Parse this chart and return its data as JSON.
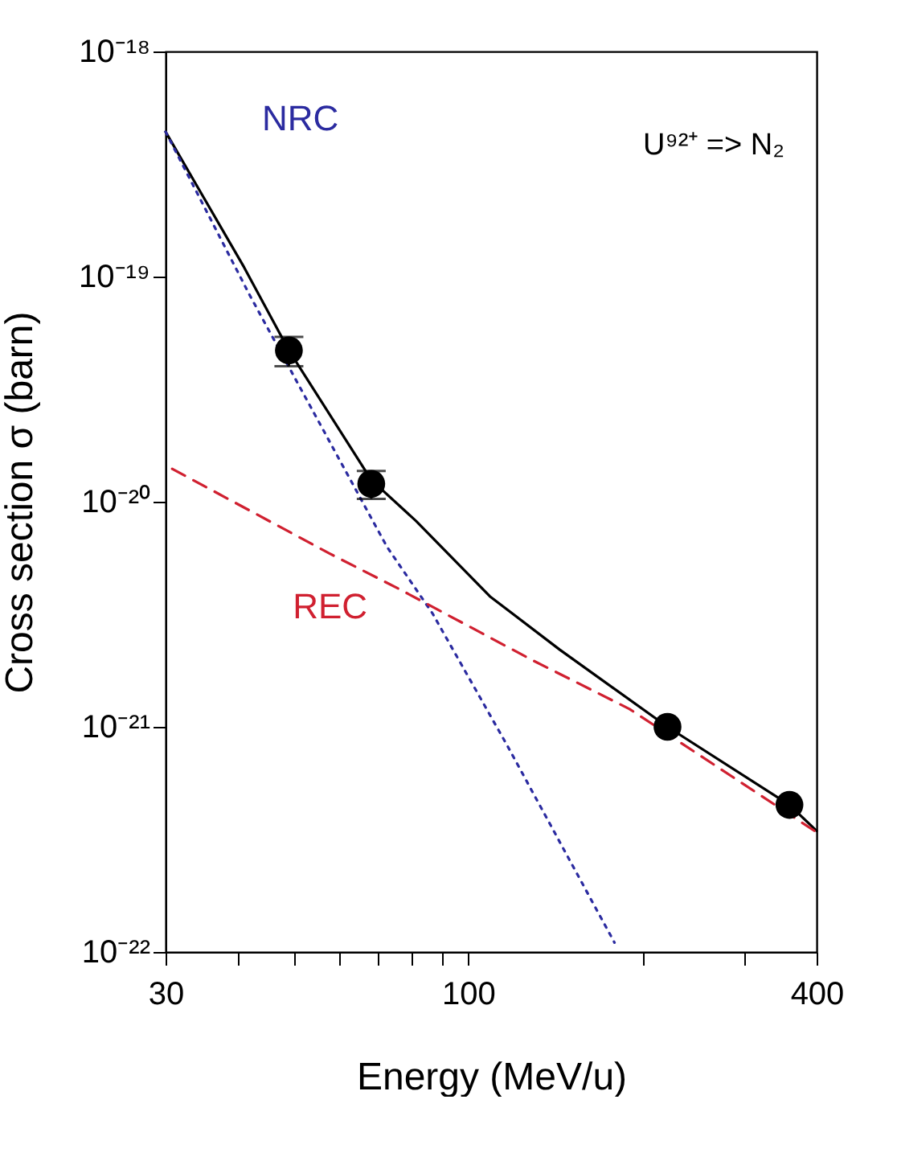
{
  "chart_data": {
    "type": "line",
    "xlabel": "Energy (MeV/u)",
    "ylabel": "Cross section σ (barn)",
    "annotations": [
      "U⁹²⁺ => N₂"
    ],
    "log": "xy",
    "grid": false,
    "xlim": [
      30,
      400
    ],
    "xticks": [
      30,
      {
        "value": 40,
        "label": null
      },
      {
        "value": 50,
        "label": null
      },
      {
        "value": 60,
        "label": null
      },
      {
        "value": 70,
        "label": null
      },
      {
        "value": 80,
        "label": null
      },
      {
        "value": 90,
        "label": null
      },
      100,
      {
        "value": 200,
        "label": null
      },
      {
        "value": 300,
        "label": null
      },
      400
    ],
    "ylim": [
      1e-22,
      1e-18
    ],
    "yticks": [
      {
        "value": 1e-22,
        "label": "10⁻²²"
      },
      {
        "value": 1e-21,
        "label": "10⁻²¹"
      },
      {
        "value": 1e-20,
        "label": "10⁻²⁰"
      },
      {
        "value": 1e-19,
        "label": "10⁻¹⁹"
      },
      {
        "value": 1e-18,
        "label": "10⁻¹⁸"
      }
    ],
    "series": [
      {
        "type": "line",
        "color": "#000000",
        "line_style": "solid",
        "marker": "none",
        "x": [
          30,
          41,
          49,
          68,
          81.3,
          109,
          144,
          221,
          359,
          400
        ],
        "values": [
          4.4e-19,
          1.1e-19,
          4.7e-20,
          1.25e-20,
          8.2e-21,
          3.8e-21,
          2.2e-21,
          1e-21,
          4.5e-22,
          3.45e-22
        ]
      },
      {
        "type": "line",
        "name": "NRC",
        "color": "#2b2ba0",
        "line_style": "dotted",
        "marker": "none",
        "x": [
          30,
          42,
          72.4,
          86.7,
          117,
          179
        ],
        "values": [
          4.4e-19,
          8.2e-20,
          6.3e-21,
          3.2e-21,
          8.2e-22,
          1.1e-22
        ]
      },
      {
        "type": "line",
        "name": "REC",
        "color": "#d02030",
        "line_style": "dashed",
        "marker": "none",
        "x": [
          30.8,
          57.5,
          75.9,
          128,
          190,
          400
        ],
        "values": [
          1.4e-20,
          5.9e-21,
          4.1e-21,
          2e-21,
          1.2e-21,
          3.4e-22
        ]
      },
      {
        "type": "scatter",
        "color": "#000000",
        "marker": "circle",
        "x": [
          49,
          68,
          221,
          359
        ],
        "values": [
          4.7e-20,
          1.2e-20,
          1e-21,
          4.5e-22
        ],
        "errors": [
          7e-21,
          1.7e-21,
          null,
          null
        ]
      }
    ]
  }
}
